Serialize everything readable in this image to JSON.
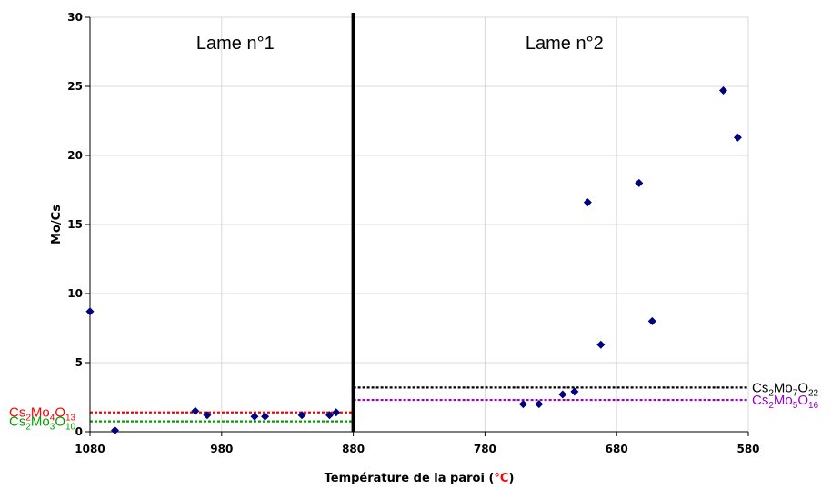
{
  "chart_data": {
    "type": "scatter",
    "title": "",
    "xlabel": "Température de la paroi (",
    "xlabel_unit": "°C",
    "xlabel_close": ")",
    "xlabel_unit_color": "#ff0000",
    "ylabel": "Mo/Cs",
    "xlim": [
      1080,
      580
    ],
    "x_reversed": true,
    "ylim": [
      0,
      30
    ],
    "x_ticks": [
      1080,
      980,
      880,
      780,
      680,
      580
    ],
    "y_ticks": [
      0,
      5,
      10,
      15,
      20,
      25,
      30
    ],
    "grid": true,
    "marker_color": "#000080",
    "divider_x": 880,
    "panels": [
      "Lame n°1",
      "Lame n°2"
    ],
    "series": [
      {
        "points": [
          [
            1080,
            8.7
          ],
          [
            1061,
            0.1
          ],
          [
            1000,
            1.5
          ],
          [
            991,
            1.2
          ],
          [
            955,
            1.1
          ],
          [
            947,
            1.1
          ],
          [
            919,
            1.2
          ],
          [
            898,
            1.2
          ],
          [
            893,
            1.4
          ],
          [
            751,
            2.0
          ],
          [
            739,
            2.0
          ],
          [
            721,
            2.7
          ],
          [
            712,
            2.9
          ],
          [
            702,
            16.6
          ],
          [
            692,
            6.3
          ],
          [
            663,
            18.0
          ],
          [
            653,
            8.0
          ],
          [
            599,
            24.7
          ],
          [
            588,
            21.3
          ]
        ]
      }
    ],
    "reference_lines": [
      {
        "y": 1.4,
        "x_from": 1080,
        "x_to": 880,
        "color": "#ff0000",
        "label_parts": [
          "Cs",
          "2",
          "Mo",
          "4",
          "O",
          "13"
        ],
        "side": "left"
      },
      {
        "y": 0.75,
        "x_from": 1080,
        "x_to": 880,
        "color": "#00a000",
        "label_parts": [
          "Cs",
          "2",
          "Mo",
          "3",
          "O",
          "10"
        ],
        "side": "left"
      },
      {
        "y": 3.2,
        "x_from": 880,
        "x_to": 580,
        "color": "#000000",
        "label_parts": [
          "Cs",
          "2",
          "Mo",
          "7",
          "O",
          "22"
        ],
        "side": "right"
      },
      {
        "y": 2.3,
        "x_from": 880,
        "x_to": 580,
        "color": "#9900cc",
        "label_parts": [
          "Cs",
          "2",
          "Mo",
          "5",
          "O",
          "16"
        ],
        "side": "right"
      }
    ]
  }
}
